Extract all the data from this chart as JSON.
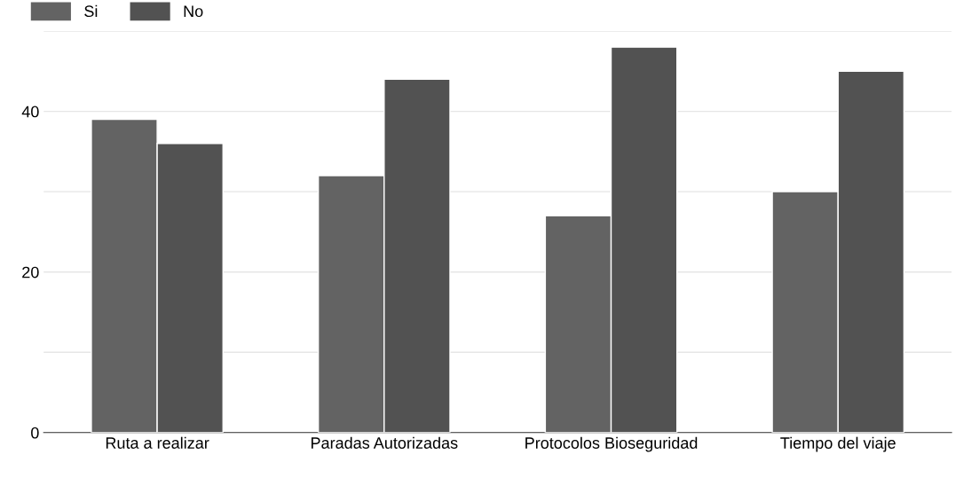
{
  "chart_data": {
    "type": "bar",
    "categories": [
      "Ruta a realizar",
      "Paradas Autorizadas",
      "Protocolos Bioseguridad",
      "Tiempo del viaje"
    ],
    "series": [
      {
        "name": "Si",
        "color": "#636363",
        "values": [
          39,
          32,
          27,
          30
        ]
      },
      {
        "name": "No",
        "color": "#525252",
        "values": [
          36,
          44,
          48,
          45
        ]
      }
    ],
    "ylim": [
      0,
      50
    ],
    "yticks": [
      0,
      {
        "value": 10,
        "label": null
      },
      20,
      {
        "value": 30,
        "label": null
      },
      40,
      {
        "value": 50,
        "label": null
      }
    ],
    "grid": "y",
    "legend": "top left"
  }
}
